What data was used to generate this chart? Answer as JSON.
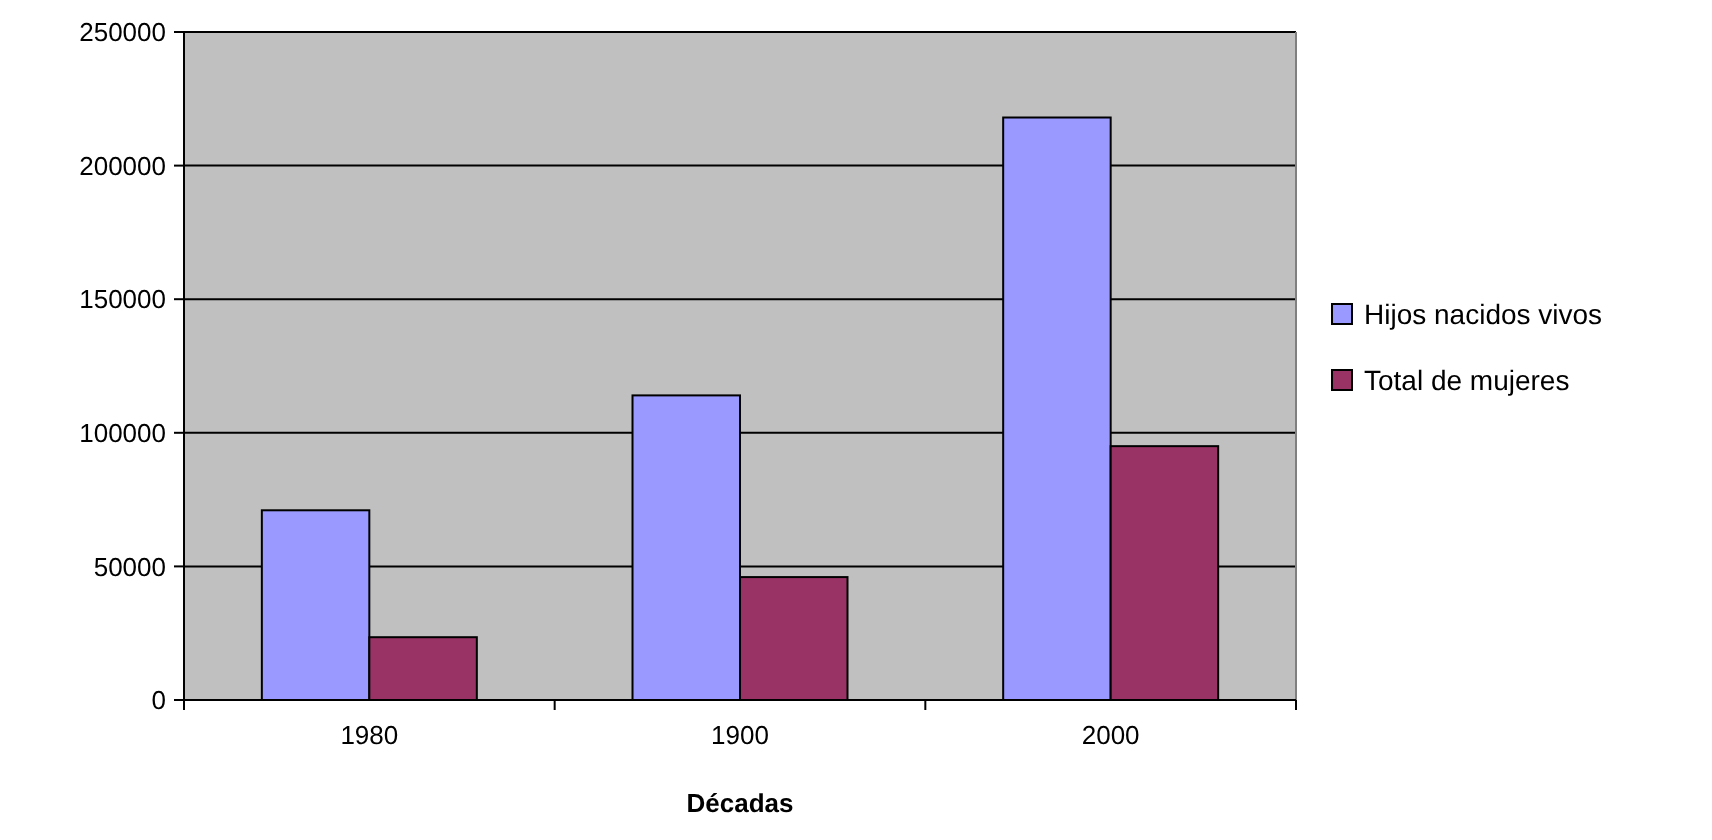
{
  "chart_data": {
    "type": "bar",
    "xlabel": "Décadas",
    "categories": [
      "1980",
      "1900",
      "2000"
    ],
    "series": [
      {
        "name": "Hijos nacidos vivos",
        "color": "#9999ff",
        "values": [
          71000,
          114000,
          218000
        ]
      },
      {
        "name": "Total de mujeres",
        "color": "#993366",
        "values": [
          23500,
          46000,
          95000
        ]
      }
    ],
    "ylim": [
      0,
      250000
    ],
    "yticks": [
      0,
      50000,
      100000,
      150000,
      200000,
      250000
    ],
    "grid": "y",
    "legend": "right"
  }
}
